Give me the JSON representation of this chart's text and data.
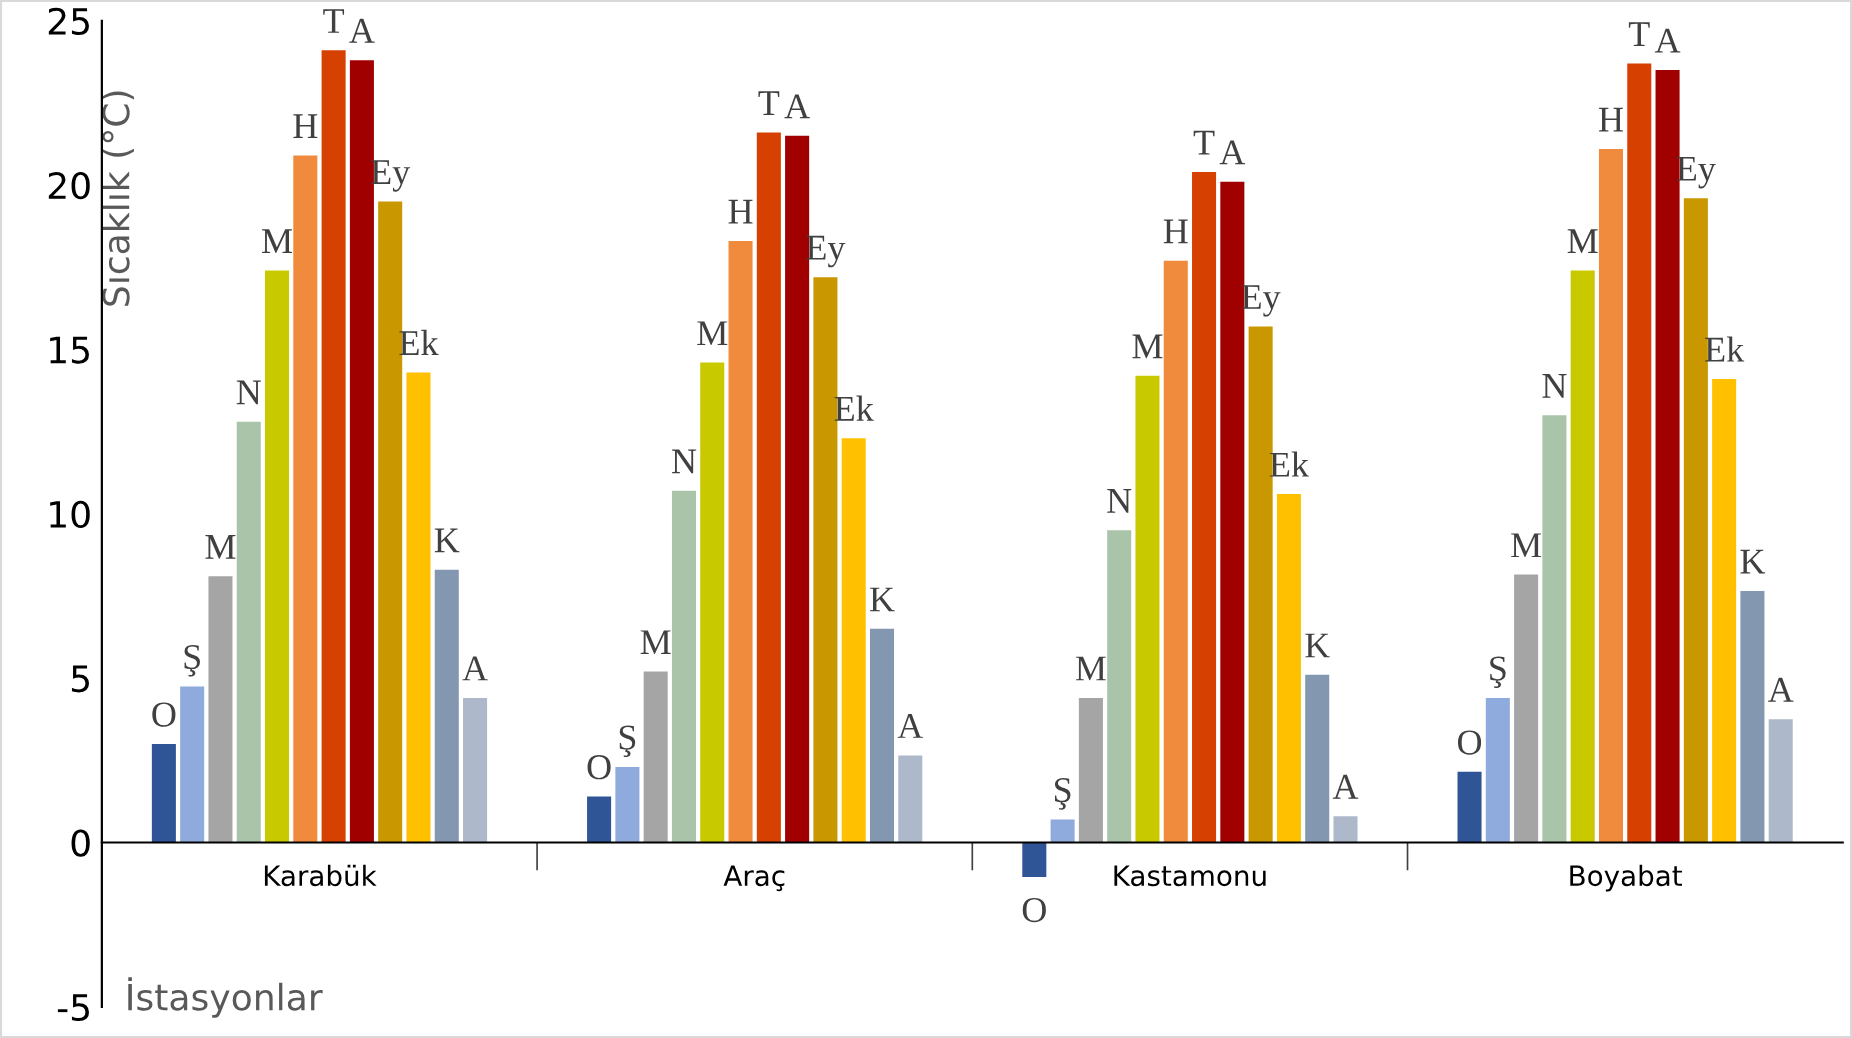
{
  "chart_data": {
    "type": "bar",
    "ylabel": "Sıcaklık (°C)",
    "xlabel": "İstasyonlar",
    "categories": [
      "Karabük",
      "Araç",
      "Kastamonu",
      "Boyabat"
    ],
    "ylim": [
      -5,
      25
    ],
    "yticks": [
      -5,
      0,
      5,
      10,
      15,
      20,
      25
    ],
    "grid": false,
    "legend": false,
    "series": [
      {
        "name": "O",
        "color": "#2f5597",
        "values": [
          3.0,
          1.4,
          -1.05,
          2.15
        ]
      },
      {
        "name": "Ş",
        "color": "#8faadc",
        "values": [
          4.75,
          2.3,
          0.7,
          4.4
        ]
      },
      {
        "name": "M",
        "color": "#a5a5a5",
        "values": [
          8.1,
          5.2,
          4.4,
          8.15
        ]
      },
      {
        "name": "N",
        "color": "#a9c4a9",
        "values": [
          12.8,
          10.7,
          9.5,
          13.0
        ]
      },
      {
        "name": "M",
        "color": "#c9c900",
        "values": [
          17.4,
          14.6,
          14.2,
          17.4
        ]
      },
      {
        "name": "H",
        "color": "#f08a3c",
        "values": [
          20.9,
          18.3,
          17.7,
          21.1
        ]
      },
      {
        "name": "T",
        "color": "#d64000",
        "values": [
          24.1,
          21.6,
          20.4,
          23.7
        ]
      },
      {
        "name": "A",
        "color": "#a00000",
        "values": [
          23.8,
          21.5,
          20.1,
          23.5
        ]
      },
      {
        "name": "Ey",
        "color": "#c99700",
        "values": [
          19.5,
          17.2,
          15.7,
          19.6
        ]
      },
      {
        "name": "Ek",
        "color": "#ffc000",
        "values": [
          14.3,
          12.3,
          10.6,
          14.1
        ]
      },
      {
        "name": "K",
        "color": "#8497b0",
        "values": [
          8.3,
          6.5,
          5.1,
          7.65
        ]
      },
      {
        "name": "A",
        "color": "#adb9ca",
        "values": [
          4.4,
          2.65,
          0.8,
          3.75
        ]
      }
    ]
  }
}
